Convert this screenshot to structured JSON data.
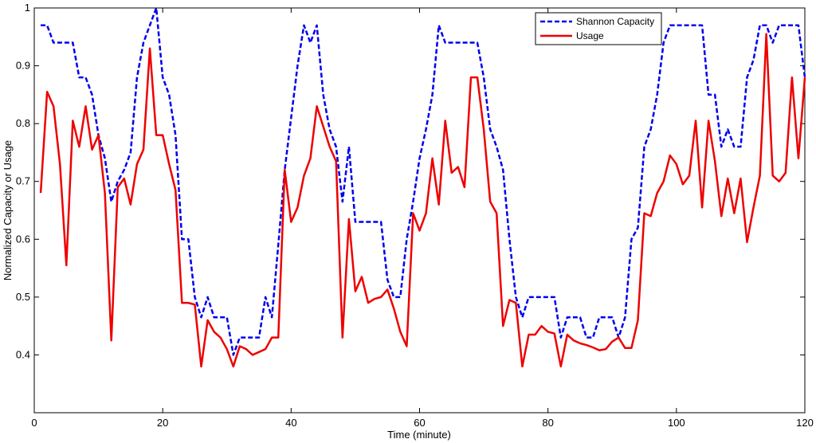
{
  "chart_data": {
    "type": "line",
    "title": "",
    "xlabel": "Time (minute)",
    "ylabel": "Normalized Capacity or Usage",
    "xlim": [
      0,
      120
    ],
    "ylim": [
      0.3,
      1.0
    ],
    "xticks": [
      0,
      20,
      40,
      60,
      80,
      100,
      120
    ],
    "yticks": [
      0.4,
      0.5,
      0.6,
      0.7,
      0.8,
      0.9,
      1.0
    ],
    "xtick_labels": [
      "0",
      "20",
      "40",
      "60",
      "80",
      "100",
      "120"
    ],
    "ytick_labels": [
      "0.4",
      "0.5",
      "0.6",
      "0.7",
      "0.8",
      "0.9",
      "1"
    ],
    "grid": false,
    "legend_position": "top-right",
    "x": [
      1,
      2,
      3,
      4,
      5,
      6,
      7,
      8,
      9,
      10,
      11,
      12,
      13,
      14,
      15,
      16,
      17,
      18,
      19,
      20,
      21,
      22,
      23,
      24,
      25,
      26,
      27,
      28,
      29,
      30,
      31,
      32,
      33,
      34,
      35,
      36,
      37,
      38,
      39,
      40,
      41,
      42,
      43,
      44,
      45,
      46,
      47,
      48,
      49,
      50,
      51,
      52,
      53,
      54,
      55,
      56,
      57,
      58,
      59,
      60,
      61,
      62,
      63,
      64,
      65,
      66,
      67,
      68,
      69,
      70,
      71,
      72,
      73,
      74,
      75,
      76,
      77,
      78,
      79,
      80,
      81,
      82,
      83,
      84,
      85,
      86,
      87,
      88,
      89,
      90,
      91,
      92,
      93,
      94,
      95,
      96,
      97,
      98,
      99,
      100,
      101,
      102,
      103,
      104,
      105,
      106,
      107,
      108,
      109,
      110,
      111,
      112,
      113,
      114,
      115,
      116,
      117,
      118,
      119,
      120
    ],
    "series": [
      {
        "name": "Shannon Capacity",
        "color": "#0000ee",
        "style": "dashed",
        "values": [
          0.97,
          0.97,
          0.94,
          0.94,
          0.94,
          0.94,
          0.88,
          0.88,
          0.85,
          0.78,
          0.74,
          0.665,
          0.7,
          0.72,
          0.75,
          0.88,
          0.94,
          0.97,
          1.0,
          0.88,
          0.85,
          0.78,
          0.6,
          0.6,
          0.5,
          0.465,
          0.5,
          0.465,
          0.465,
          0.465,
          0.4,
          0.43,
          0.43,
          0.43,
          0.43,
          0.5,
          0.465,
          0.59,
          0.72,
          0.81,
          0.9,
          0.97,
          0.94,
          0.97,
          0.85,
          0.79,
          0.76,
          0.665,
          0.76,
          0.63,
          0.63,
          0.63,
          0.63,
          0.63,
          0.53,
          0.5,
          0.5,
          0.6,
          0.665,
          0.74,
          0.79,
          0.85,
          0.97,
          0.94,
          0.94,
          0.94,
          0.94,
          0.94,
          0.94,
          0.88,
          0.79,
          0.76,
          0.72,
          0.6,
          0.5,
          0.465,
          0.5,
          0.5,
          0.5,
          0.5,
          0.5,
          0.43,
          0.465,
          0.465,
          0.465,
          0.43,
          0.43,
          0.465,
          0.465,
          0.465,
          0.43,
          0.465,
          0.6,
          0.62,
          0.76,
          0.79,
          0.85,
          0.94,
          0.97,
          0.97,
          0.97,
          0.97,
          0.97,
          0.97,
          0.85,
          0.85,
          0.76,
          0.79,
          0.76,
          0.76,
          0.88,
          0.91,
          0.97,
          0.97,
          0.94,
          0.97,
          0.97,
          0.97,
          0.97,
          0.88
        ]
      },
      {
        "name": "Usage",
        "color": "#ee0000",
        "style": "solid",
        "values": [
          0.68,
          0.855,
          0.83,
          0.73,
          0.555,
          0.805,
          0.76,
          0.83,
          0.755,
          0.78,
          0.68,
          0.425,
          0.69,
          0.705,
          0.66,
          0.73,
          0.755,
          0.93,
          0.78,
          0.78,
          0.73,
          0.685,
          0.49,
          0.49,
          0.487,
          0.38,
          0.46,
          0.44,
          0.43,
          0.41,
          0.38,
          0.415,
          0.41,
          0.4,
          0.405,
          0.41,
          0.43,
          0.43,
          0.72,
          0.63,
          0.655,
          0.71,
          0.74,
          0.83,
          0.795,
          0.76,
          0.735,
          0.43,
          0.635,
          0.51,
          0.535,
          0.49,
          0.497,
          0.5,
          0.513,
          0.48,
          0.44,
          0.415,
          0.645,
          0.615,
          0.645,
          0.74,
          0.66,
          0.805,
          0.715,
          0.725,
          0.69,
          0.88,
          0.88,
          0.79,
          0.665,
          0.645,
          0.45,
          0.495,
          0.49,
          0.38,
          0.435,
          0.435,
          0.45,
          0.44,
          0.437,
          0.38,
          0.435,
          0.425,
          0.42,
          0.417,
          0.413,
          0.408,
          0.41,
          0.423,
          0.43,
          0.412,
          0.412,
          0.46,
          0.645,
          0.64,
          0.68,
          0.7,
          0.745,
          0.73,
          0.695,
          0.71,
          0.805,
          0.655,
          0.805,
          0.735,
          0.64,
          0.705,
          0.645,
          0.705,
          0.595,
          0.655,
          0.71,
          0.955,
          0.71,
          0.7,
          0.715,
          0.88,
          0.74,
          0.88
        ]
      }
    ]
  }
}
